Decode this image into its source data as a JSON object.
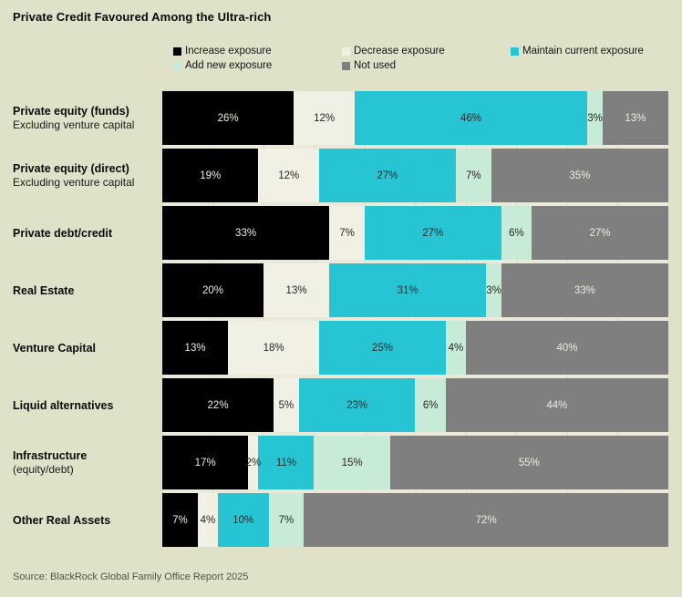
{
  "title": "Private Credit Favoured Among the Ultra-rich",
  "source": "Source: BlackRock Global Family Office Report 2025",
  "colors": {
    "page_bg": "#dfe1c9",
    "plot_bg": "#ebe9da",
    "increase": "#000000",
    "decrease": "#f1f0e4",
    "maintain": "#27c5d3",
    "add_new": "#c8ebd8",
    "not_used": "#7f7f7f",
    "light_text": "#edecdf",
    "dark_text": "#262626"
  },
  "legend": {
    "items": [
      {
        "key": "increase",
        "label": "Increase exposure",
        "color": "#000000"
      },
      {
        "key": "decrease",
        "label": "Decrease exposure",
        "color": "#f1f0e4"
      },
      {
        "key": "maintain",
        "label": "Maintain current exposure",
        "color": "#27c5d3"
      },
      {
        "key": "add-new",
        "label": "Add new exposure",
        "color": "#c8ebd8"
      },
      {
        "key": "not-used",
        "label": "Not used",
        "color": "#7f7f7f"
      }
    ]
  },
  "chart_data": {
    "type": "bar",
    "orientation": "horizontal",
    "stacked": true,
    "value_suffix": "%",
    "xlim": [
      0,
      100
    ],
    "grid": "faint vertical lines every 10%",
    "legend_position": "top",
    "categories": [
      {
        "label": "Private equity (funds)",
        "sublabel": "Excluding venture capital"
      },
      {
        "label": "Private equity (direct)",
        "sublabel": "Excluding venture capital"
      },
      {
        "label": "Private debt/credit",
        "sublabel": ""
      },
      {
        "label": "Real Estate",
        "sublabel": ""
      },
      {
        "label": "Venture Capital",
        "sublabel": ""
      },
      {
        "label": "Liquid alternatives",
        "sublabel": ""
      },
      {
        "label": "Infrastructure",
        "sublabel": "(equity/debt)"
      },
      {
        "label": "Other Real Assets",
        "sublabel": ""
      }
    ],
    "series": [
      {
        "name": "Increase exposure",
        "key": "increase",
        "color": "#000000",
        "text": "light",
        "values": [
          26,
          19,
          33,
          20,
          13,
          22,
          17,
          7
        ]
      },
      {
        "name": "Decrease exposure",
        "key": "decrease",
        "color": "#f1f0e4",
        "text": "dark",
        "values": [
          12,
          12,
          7,
          13,
          18,
          5,
          2,
          4
        ]
      },
      {
        "name": "Maintain current exposure",
        "key": "maintain",
        "color": "#27c5d3",
        "text": "dark",
        "values": [
          46,
          27,
          27,
          31,
          25,
          23,
          11,
          10
        ]
      },
      {
        "name": "Add new exposure",
        "key": "add-new",
        "color": "#c8ebd8",
        "text": "dark",
        "values": [
          3,
          7,
          6,
          3,
          4,
          6,
          15,
          7
        ]
      },
      {
        "name": "Not used",
        "key": "not-used",
        "color": "#7f7f7f",
        "text": "light",
        "values": [
          13,
          35,
          27,
          33,
          40,
          44,
          55,
          72
        ]
      }
    ]
  }
}
